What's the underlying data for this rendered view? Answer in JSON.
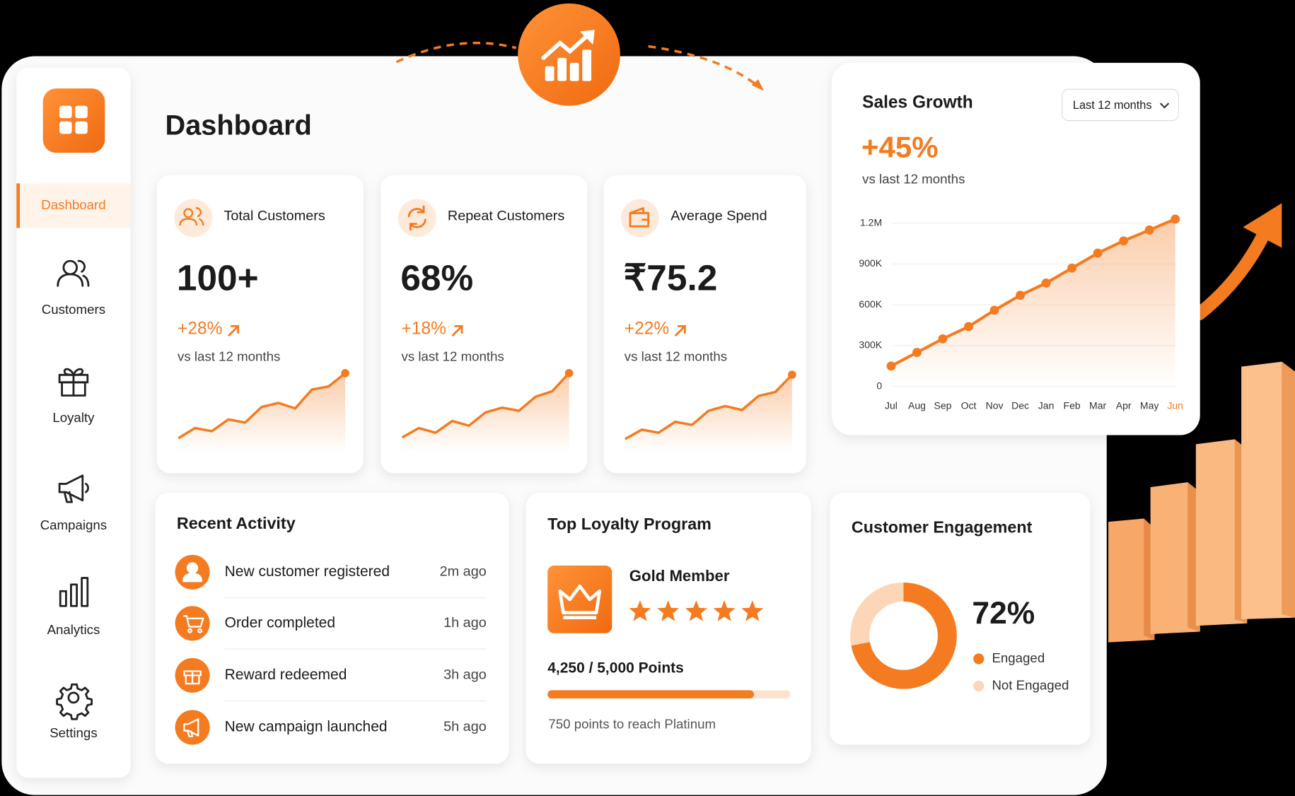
{
  "header": {
    "title": "Dashboard"
  },
  "sidebar": {
    "items": [
      {
        "label": "Dashboard",
        "active": true
      },
      {
        "label": "Customers"
      },
      {
        "label": "Loyalty"
      },
      {
        "label": "Campaigns"
      },
      {
        "label": "Analytics"
      },
      {
        "label": "Settings"
      }
    ]
  },
  "stats": [
    {
      "title": "Total Customers",
      "value": "100+",
      "change": "+28%",
      "period": "vs last 12 months",
      "sparkline": {
        "type": "line",
        "values": [
          1.5,
          2.8,
          2.4,
          3.9,
          3.5,
          5.5,
          6,
          5.3,
          7.7,
          8.1,
          9.8
        ],
        "ylim": [
          0,
          10
        ],
        "color": "#f47b20"
      }
    },
    {
      "title": "Repeat Customers",
      "value": "68%",
      "change": "+18%",
      "period": "vs last 12 months",
      "sparkline": {
        "type": "line",
        "values": [
          1.6,
          2.8,
          2.2,
          3.7,
          3.1,
          4.8,
          5.4,
          5,
          6.8,
          7.5,
          9.8
        ],
        "ylim": [
          0,
          10
        ],
        "color": "#f47b20"
      }
    },
    {
      "title": "Average Spend",
      "value": "₹75.2",
      "change": "+22%",
      "period": "vs last 12 months",
      "sparkline": {
        "type": "line",
        "values": [
          1.4,
          2.6,
          2.2,
          3.6,
          3.2,
          5,
          5.6,
          5.1,
          6.9,
          7.4,
          9.6
        ],
        "ylim": [
          0,
          10
        ],
        "color": "#f47b20"
      }
    }
  ],
  "sales_growth": {
    "title": "Sales Growth",
    "range": "Last 12 months",
    "change": "+45%",
    "period": "vs last 12 months",
    "chart_data": {
      "type": "line",
      "categories": [
        "Jul",
        "Aug",
        "Sep",
        "Oct",
        "Nov",
        "Dec",
        "Jan",
        "Feb",
        "Mar",
        "Apr",
        "May",
        "Jun"
      ],
      "values": [
        150000,
        250000,
        350000,
        440000,
        560000,
        670000,
        760000,
        870000,
        980000,
        1070000,
        1150000,
        1230000
      ],
      "ylim": [
        0,
        1250000
      ],
      "yticks": [
        0,
        {
          "value": 300000,
          "label": "300K"
        },
        {
          "value": 600000,
          "label": "600K"
        },
        {
          "value": 900000,
          "label": "900K"
        },
        {
          "value": 1200000,
          "label": "1.2M"
        }
      ],
      "color": "#f47b20",
      "grid": true,
      "area": true,
      "highlight_last": true
    }
  },
  "recent_activity": {
    "title": "Recent Activity",
    "items": [
      {
        "text": "New customer registered",
        "time": "2m ago"
      },
      {
        "text": "Order completed",
        "time": "1h ago"
      },
      {
        "text": "Reward redeemed",
        "time": "3h ago"
      },
      {
        "text": "New campaign launched",
        "time": "5h ago"
      }
    ]
  },
  "loyalty": {
    "title": "Top Loyalty Program",
    "tier": "Gold Member",
    "stars": 5,
    "points": {
      "label": "4,250 / 5,000 Points",
      "value": 4250,
      "max": 5000
    },
    "note": "750 points to reach Platinum"
  },
  "engagement": {
    "title": "Customer Engagement",
    "chart_data": {
      "type": "donut",
      "categories": [
        "Engaged",
        "Not Engaged"
      ],
      "values": [
        72,
        28
      ],
      "colors": [
        "#f47b20",
        "#fcd6b6"
      ],
      "center_label": "72%"
    }
  }
}
